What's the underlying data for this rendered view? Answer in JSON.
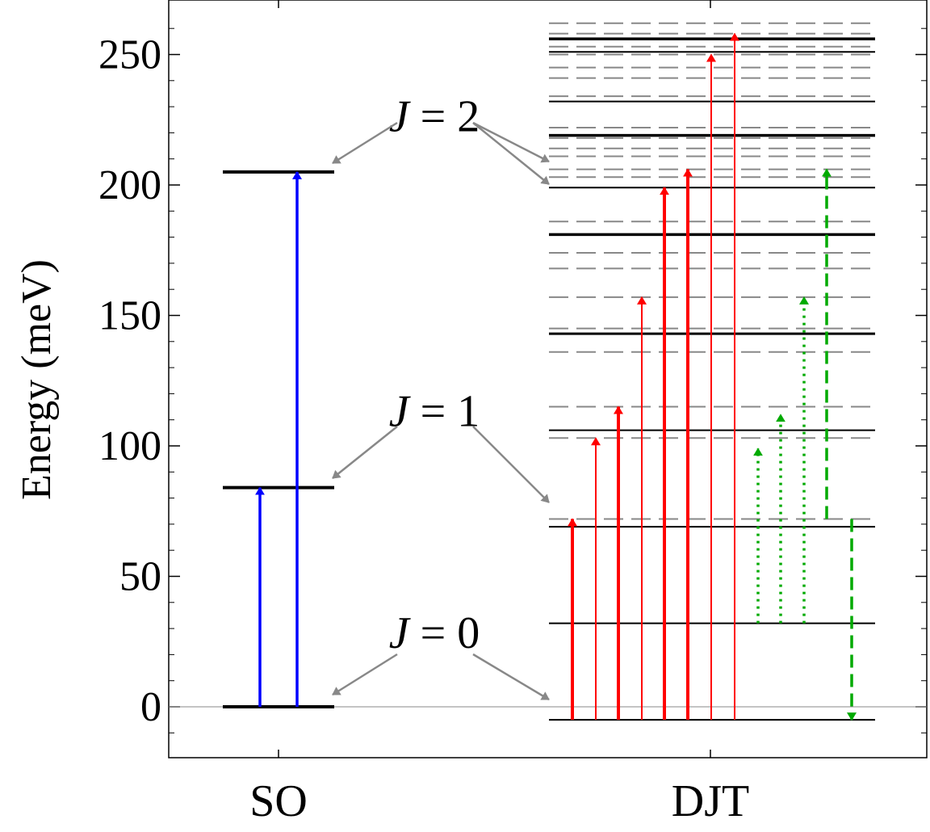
{
  "chart_data": {
    "type": "energy_level_diagram",
    "ylabel": "Energy (meV)",
    "ylim": [
      -20,
      268
    ],
    "yticks": [
      0,
      50,
      100,
      150,
      200,
      250
    ],
    "categories": [
      "SO",
      "DJT"
    ],
    "so_levels": [
      {
        "J": "0",
        "energy": 0
      },
      {
        "J": "1",
        "energy": 84
      },
      {
        "J": "2",
        "energy": 205
      }
    ],
    "djt_solid_levels": [
      -5,
      32,
      69,
      106,
      143,
      181,
      199,
      219,
      232,
      251,
      256
    ],
    "djt_dashed_levels": [
      72,
      103,
      115,
      136,
      145,
      157,
      168,
      174,
      186,
      203,
      206,
      211,
      214,
      218,
      222,
      234,
      241,
      245,
      250,
      253,
      258,
      262
    ],
    "so_transitions": [
      {
        "from": 0,
        "to": 84,
        "color": "#0000ff"
      },
      {
        "from": 0,
        "to": 205,
        "color": "#0000ff"
      }
    ],
    "djt_red_transitions": [
      {
        "from": -5,
        "to": 72
      },
      {
        "from": -5,
        "to": 103
      },
      {
        "from": -5,
        "to": 115
      },
      {
        "from": -5,
        "to": 157
      },
      {
        "from": -5,
        "to": 199
      },
      {
        "from": -5,
        "to": 206
      },
      {
        "from": -5,
        "to": 250
      },
      {
        "from": -5,
        "to": 258
      }
    ],
    "djt_green_transitions": [
      {
        "from": 32,
        "to": 99,
        "style": "dotted"
      },
      {
        "from": 32,
        "to": 112,
        "style": "dotted"
      },
      {
        "from": 32,
        "to": 157,
        "style": "dotted"
      },
      {
        "from": 72,
        "to": 206,
        "style": "dashed"
      },
      {
        "from": 72,
        "to": -5,
        "style": "dashed"
      }
    ],
    "annotations": [
      {
        "var": "J",
        "text": " = 2",
        "energy": 228
      },
      {
        "var": "J",
        "text": " = 1",
        "energy": 115
      },
      {
        "var": "J",
        "text": " = 0",
        "energy": 30
      }
    ],
    "colors": {
      "so": "#0000ff",
      "red": "#ff0000",
      "green": "#00aa00",
      "annotation_arrow": "#888888",
      "dashed_level": "#888888"
    }
  }
}
